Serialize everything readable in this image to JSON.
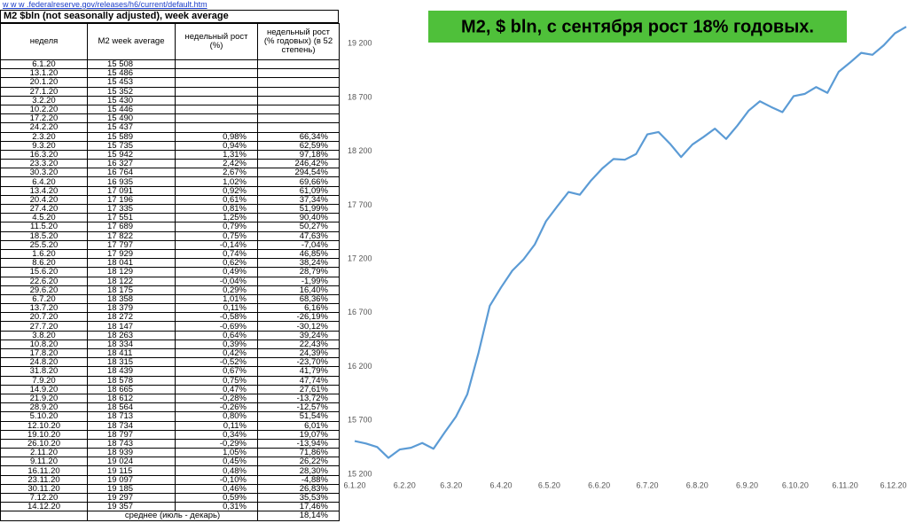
{
  "table": {
    "link": "w w w .federalreserve.gov/releases/h6/current/default.htm",
    "title": "M2 $bln (not seasonally adjusted), week average",
    "columns": [
      "неделя",
      "M2 week average",
      "недельный рост (%)",
      "недельный рост (% годовых) (в 52 степень)"
    ],
    "rows": [
      [
        "6.1.20",
        "15 508"
      ],
      [
        "13.1.20",
        "15 486"
      ],
      [
        "20.1.20",
        "15 453"
      ],
      [
        "27.1.20",
        "15 352"
      ],
      [
        "3.2.20",
        "15 430"
      ],
      [
        "10.2.20",
        "15 446"
      ],
      [
        "17.2.20",
        "15 490"
      ],
      [
        "24.2.20",
        "15 437"
      ],
      [
        "2.3.20",
        "15 589",
        "0,98%",
        "66,34%"
      ],
      [
        "9.3.20",
        "15 735",
        "0,94%",
        "62,59%"
      ],
      [
        "16.3.20",
        "15 942",
        "1,31%",
        "97,18%"
      ],
      [
        "23.3.20",
        "16 327",
        "2,42%",
        "246,42%"
      ],
      [
        "30.3.20",
        "16 764",
        "2,67%",
        "294,54%"
      ],
      [
        "6.4.20",
        "16 935",
        "1,02%",
        "69,66%"
      ],
      [
        "13.4.20",
        "17 091",
        "0,92%",
        "61,09%"
      ],
      [
        "20.4.20",
        "17 196",
        "0,61%",
        "37,34%"
      ],
      [
        "27.4.20",
        "17 335",
        "0,81%",
        "51,99%"
      ],
      [
        "4.5.20",
        "17 551",
        "1,25%",
        "90,40%"
      ],
      [
        "11.5.20",
        "17 689",
        "0,79%",
        "50,27%"
      ],
      [
        "18.5.20",
        "17 822",
        "0,75%",
        "47,63%"
      ],
      [
        "25.5.20",
        "17 797",
        "-0,14%",
        "-7,04%"
      ],
      [
        "1.6.20",
        "17 929",
        "0,74%",
        "46,85%"
      ],
      [
        "8.6.20",
        "18 041",
        "0,62%",
        "38,24%"
      ],
      [
        "15.6.20",
        "18 129",
        "0,49%",
        "28,79%"
      ],
      [
        "22.6.20",
        "18 122",
        "-0,04%",
        "-1,99%"
      ],
      [
        "29.6.20",
        "18 175",
        "0,29%",
        "16,40%"
      ],
      [
        "6.7.20",
        "18 358",
        "1,01%",
        "68,36%"
      ],
      [
        "13.7.20",
        "18 379",
        "0,11%",
        "6,16%"
      ],
      [
        "20.7.20",
        "18 272",
        "-0,58%",
        "-26,19%"
      ],
      [
        "27.7.20",
        "18 147",
        "-0,69%",
        "-30,12%"
      ],
      [
        "3.8.20",
        "18 263",
        "0,64%",
        "39,24%"
      ],
      [
        "10.8.20",
        "18 334",
        "0,39%",
        "22,43%"
      ],
      [
        "17.8.20",
        "18 411",
        "0,42%",
        "24,39%"
      ],
      [
        "24.8.20",
        "18 315",
        "-0,52%",
        "-23,70%"
      ],
      [
        "31.8.20",
        "18 439",
        "0,67%",
        "41,79%"
      ],
      [
        "7.9.20",
        "18 578",
        "0,75%",
        "47,74%"
      ],
      [
        "14.9.20",
        "18 665",
        "0,47%",
        "27,61%"
      ],
      [
        "21.9.20",
        "18 612",
        "-0,28%",
        "-13,72%"
      ],
      [
        "28.9.20",
        "18 564",
        "-0,26%",
        "-12,57%"
      ],
      [
        "5.10.20",
        "18 713",
        "0,80%",
        "51,54%"
      ],
      [
        "12.10.20",
        "18 734",
        "0,11%",
        "6,01%"
      ],
      [
        "19.10.20",
        "18 797",
        "0,34%",
        "19,07%"
      ],
      [
        "26.10.20",
        "18 743",
        "-0,29%",
        "-13,94%"
      ],
      [
        "2.11.20",
        "18 939",
        "1,05%",
        "71,86%"
      ],
      [
        "9.11.20",
        "19 024",
        "0,45%",
        "26,22%"
      ],
      [
        "16.11.20",
        "19 115",
        "0,48%",
        "28,30%"
      ],
      [
        "23.11.20",
        "19 097",
        "-0,10%",
        "-4,88%"
      ],
      [
        "30.11.20",
        "19 185",
        "0,46%",
        "26,83%"
      ],
      [
        "7.12.20",
        "19 297",
        "0,59%",
        "35,53%"
      ],
      [
        "14.12.20",
        "19 357",
        "0,31%",
        "17,46%"
      ]
    ],
    "footer": [
      "среднее (июль - декарь)",
      "18,14%"
    ]
  },
  "chart_data": {
    "type": "line",
    "title": "M2, $ bln, с сентября рост 18% годовых.",
    "x": [
      "2020-01-06",
      "2020-01-13",
      "2020-01-20",
      "2020-01-27",
      "2020-02-03",
      "2020-02-10",
      "2020-02-17",
      "2020-02-24",
      "2020-03-02",
      "2020-03-09",
      "2020-03-16",
      "2020-03-23",
      "2020-03-30",
      "2020-04-06",
      "2020-04-13",
      "2020-04-20",
      "2020-04-27",
      "2020-05-04",
      "2020-05-11",
      "2020-05-18",
      "2020-05-25",
      "2020-06-01",
      "2020-06-08",
      "2020-06-15",
      "2020-06-22",
      "2020-06-29",
      "2020-07-06",
      "2020-07-13",
      "2020-07-20",
      "2020-07-27",
      "2020-08-03",
      "2020-08-10",
      "2020-08-17",
      "2020-08-24",
      "2020-08-31",
      "2020-09-07",
      "2020-09-14",
      "2020-09-21",
      "2020-09-28",
      "2020-10-05",
      "2020-10-12",
      "2020-10-19",
      "2020-10-26",
      "2020-11-02",
      "2020-11-09",
      "2020-11-16",
      "2020-11-23",
      "2020-11-30",
      "2020-12-07",
      "2020-12-14"
    ],
    "series": [
      {
        "color": "#5b9bd5",
        "values": [
          15508,
          15486,
          15453,
          15352,
          15430,
          15446,
          15490,
          15437,
          15589,
          15735,
          15942,
          16327,
          16764,
          16935,
          17091,
          17196,
          17335,
          17551,
          17689,
          17822,
          17797,
          17929,
          18041,
          18129,
          18122,
          18175,
          18358,
          18379,
          18272,
          18147,
          18263,
          18334,
          18411,
          18315,
          18439,
          18578,
          18665,
          18612,
          18564,
          18713,
          18734,
          18797,
          18743,
          18939,
          19024,
          19115,
          19097,
          19185,
          19297,
          19357
        ]
      }
    ],
    "xlim": [
      "2020-01-06",
      "2020-12-14"
    ],
    "xticks": [
      {
        "value": "2020-01-06",
        "label": "6.1.20"
      },
      {
        "value": "2020-02-06",
        "label": "6.2.20"
      },
      {
        "value": "2020-03-06",
        "label": "6.3.20"
      },
      {
        "value": "2020-04-06",
        "label": "6.4.20"
      },
      {
        "value": "2020-05-06",
        "label": "6.5.20"
      },
      {
        "value": "2020-06-06",
        "label": "6.6.20"
      },
      {
        "value": "2020-07-06",
        "label": "6.7.20"
      },
      {
        "value": "2020-08-06",
        "label": "6.8.20"
      },
      {
        "value": "2020-09-06",
        "label": "6.9.20"
      },
      {
        "value": "2020-10-06",
        "label": "6.10.20"
      },
      {
        "value": "2020-11-06",
        "label": "6.11.20"
      },
      {
        "value": "2020-12-06",
        "label": "6.12.20"
      }
    ],
    "ylim": [
      15200,
      19400
    ],
    "yticks": [
      {
        "value": 15200,
        "label": "15 200"
      },
      {
        "value": 15700,
        "label": "15 700"
      },
      {
        "value": 16200,
        "label": "16 200"
      },
      {
        "value": 16700,
        "label": "16 700"
      },
      {
        "value": 17200,
        "label": "17 200"
      },
      {
        "value": 17700,
        "label": "17 700"
      },
      {
        "value": 18200,
        "label": "18 200"
      },
      {
        "value": 18700,
        "label": "18 700"
      },
      {
        "value": 19200,
        "label": "19 200"
      }
    ],
    "title_color": "#4fc03a"
  }
}
